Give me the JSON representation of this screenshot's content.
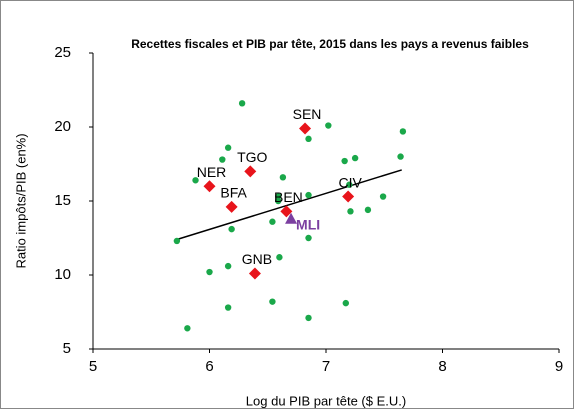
{
  "chart_data": {
    "type": "scatter",
    "title": "Recettes fiscales et PIB par tête, 2015 dans les pays a revenus faibles",
    "xlabel": "Log du PIB par tête ($ E.U.)",
    "ylabel": "Ratio impôts/PIB (en%)",
    "xlim": [
      5,
      9
    ],
    "xticks": [
      5,
      6,
      7,
      8,
      9
    ],
    "ylim": [
      5,
      25
    ],
    "yticks": [
      5,
      10,
      15,
      20,
      25
    ],
    "series": [
      {
        "color": "#1aa84a",
        "x": [
          6.28,
          7.02,
          6.16,
          6.85,
          6.11,
          5.88,
          6.63,
          7.16,
          7.25,
          7.2,
          7.49,
          7.36,
          7.21,
          6.85,
          6.59,
          6.59,
          6.54,
          6.19,
          6.85,
          5.72,
          6.0,
          6.16,
          6.6,
          6.54,
          6.16,
          7.17,
          6.85,
          5.81,
          7.66,
          7.64
        ],
        "values": [
          21.6,
          20.1,
          18.6,
          19.2,
          17.8,
          16.4,
          16.6,
          17.7,
          17.9,
          16.1,
          15.3,
          14.4,
          14.3,
          15.4,
          15.3,
          15.0,
          13.6,
          13.1,
          12.5,
          12.3,
          10.2,
          10.6,
          11.2,
          8.2,
          7.8,
          8.1,
          7.1,
          6.4,
          19.7,
          18.0
        ]
      }
    ],
    "labeled_points": [
      {
        "label": "SEN",
        "x": 6.82,
        "y": 19.9,
        "color": "#e8141b",
        "marker": "diamond"
      },
      {
        "label": "TGO",
        "x": 6.35,
        "y": 17.0,
        "color": "#e8141b",
        "marker": "diamond"
      },
      {
        "label": "NER",
        "x": 6.0,
        "y": 16.0,
        "color": "#e8141b",
        "marker": "diamond"
      },
      {
        "label": "BEN",
        "x": 6.66,
        "y": 14.3,
        "color": "#e8141b",
        "marker": "diamond"
      },
      {
        "label": "BFA",
        "x": 6.19,
        "y": 14.6,
        "color": "#e8141b",
        "marker": "diamond"
      },
      {
        "label": "CIV",
        "x": 7.19,
        "y": 15.3,
        "color": "#e8141b",
        "marker": "diamond"
      },
      {
        "label": "GNB",
        "x": 6.39,
        "y": 10.1,
        "color": "#e8141b",
        "marker": "diamond"
      },
      {
        "label": "MLI",
        "x": 6.7,
        "y": 13.8,
        "color": "#7b3fa0",
        "marker": "triangle"
      }
    ],
    "trendline": {
      "x": [
        5.72,
        7.65
      ],
      "values": [
        12.4,
        17.1
      ],
      "color": "#000000"
    }
  }
}
